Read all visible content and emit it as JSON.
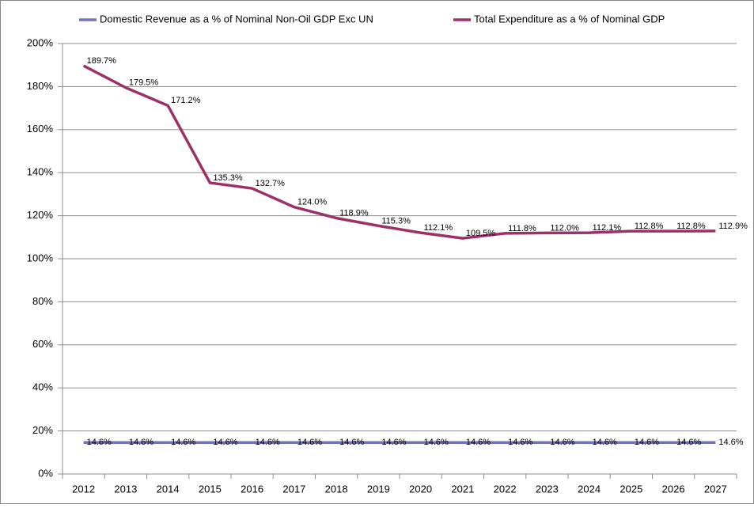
{
  "chart_data": {
    "type": "line",
    "categories": [
      "2012",
      "2013",
      "2014",
      "2015",
      "2016",
      "2017",
      "2018",
      "2019",
      "2020",
      "2021",
      "2022",
      "2023",
      "2024",
      "2025",
      "2026",
      "2027"
    ],
    "series": [
      {
        "name": "Domestic Revenue as a % of Nominal Non-Oil GDP Exc UN",
        "color": "#7373b3",
        "values": [
          14.6,
          14.6,
          14.6,
          14.6,
          14.6,
          14.6,
          14.6,
          14.6,
          14.6,
          14.6,
          14.6,
          14.6,
          14.6,
          14.6,
          14.6,
          14.6
        ],
        "value_labels": [
          "14.6%",
          "14.6%",
          "14.6%",
          "14.6%",
          "14.6%",
          "14.6%",
          "14.6%",
          "14.6%",
          "14.6%",
          "14.6%",
          "14.6%",
          "14.6%",
          "14.6%",
          "14.6%",
          "14.6%",
          "14.6%"
        ]
      },
      {
        "name": "Total Expenditure as a % of Nominal GDP",
        "color": "#9b3166",
        "values": [
          189.7,
          179.5,
          171.2,
          135.3,
          132.7,
          124.0,
          118.9,
          115.3,
          112.1,
          109.5,
          111.8,
          112.0,
          112.1,
          112.8,
          112.8,
          112.9
        ],
        "value_labels": [
          "189.7%",
          "179.5%",
          "171.2%",
          "135.3%",
          "132.7%",
          "124.0%",
          "118.9%",
          "115.3%",
          "112.1%",
          "109.5%",
          "111.8%",
          "112.0%",
          "112.1%",
          "112.8%",
          "112.8%",
          "112.9%"
        ]
      }
    ],
    "ylim": [
      0,
      200
    ],
    "yticks": [
      {
        "value": 0,
        "label": "0%"
      },
      {
        "value": 20,
        "label": "20%"
      },
      {
        "value": 40,
        "label": "40%"
      },
      {
        "value": 60,
        "label": "60%"
      },
      {
        "value": 80,
        "label": "80%"
      },
      {
        "value": 100,
        "label": "100%"
      },
      {
        "value": 120,
        "label": "120%"
      },
      {
        "value": 140,
        "label": "140%"
      },
      {
        "value": 160,
        "label": "160%"
      },
      {
        "value": 180,
        "label": "180%"
      },
      {
        "value": 200,
        "label": "200%"
      }
    ],
    "grid": true,
    "legend": "top"
  }
}
